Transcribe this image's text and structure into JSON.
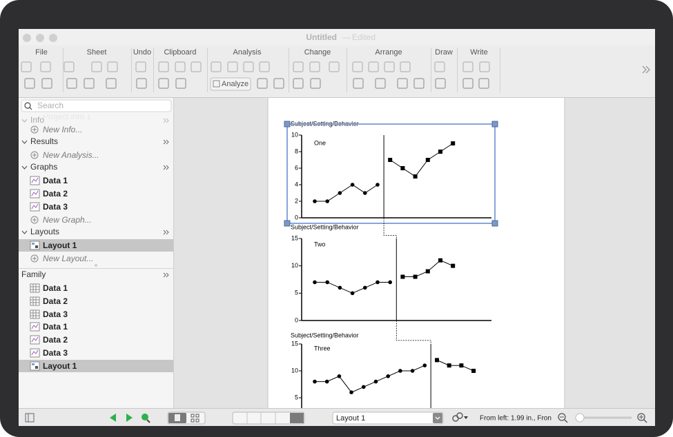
{
  "window": {
    "title": "Untitled",
    "status": "Edited"
  },
  "toolbar": {
    "groups": [
      "File",
      "Sheet",
      "Undo",
      "Clipboard",
      "Analysis",
      "Change",
      "Arrange",
      "Draw",
      "Write"
    ],
    "analyze_button": "Analyze"
  },
  "sidebar": {
    "search_placeholder": "Search",
    "sections": [
      {
        "title": "Info",
        "items": [
          {
            "label": "Project info 1",
            "icon": "hidden"
          },
          {
            "label": "New Info...",
            "icon": "new"
          }
        ]
      },
      {
        "title": "Results",
        "items": [
          {
            "label": "New Analysis...",
            "icon": "new"
          }
        ]
      },
      {
        "title": "Graphs",
        "items": [
          {
            "label": "Data 1",
            "icon": "graph"
          },
          {
            "label": "Data 2",
            "icon": "graph"
          },
          {
            "label": "Data 3",
            "icon": "graph"
          },
          {
            "label": "New Graph...",
            "icon": "new"
          }
        ]
      },
      {
        "title": "Layouts",
        "items": [
          {
            "label": "Layout 1",
            "icon": "layout",
            "selected": true
          },
          {
            "label": "New Layout...",
            "icon": "new"
          }
        ]
      },
      {
        "title": "Family",
        "items": [
          {
            "label": "Data 1",
            "icon": "table"
          },
          {
            "label": "Data 2",
            "icon": "table"
          },
          {
            "label": "Data 3",
            "icon": "table"
          },
          {
            "label": "Data 1",
            "icon": "graph"
          },
          {
            "label": "Data 2",
            "icon": "graph"
          },
          {
            "label": "Data 3",
            "icon": "graph"
          },
          {
            "label": "Layout 1",
            "icon": "layout",
            "selected": true
          }
        ]
      }
    ]
  },
  "statusbar": {
    "layout_select": "Layout 1",
    "position": "From left: 1.99 in., Fron"
  },
  "chart_data": [
    {
      "type": "line",
      "title": "Subject/Setting/Behavior",
      "label": "One",
      "ylim": [
        0,
        10
      ],
      "yticks": [
        0,
        2,
        4,
        6,
        8,
        10
      ],
      "selected": true,
      "series": [
        {
          "color": "#000000",
          "marker": "circle",
          "values": [
            2,
            2,
            3,
            4,
            3,
            4
          ]
        },
        {
          "color": "#000000",
          "marker": "square",
          "values": [
            7,
            6,
            5,
            7,
            8,
            9
          ]
        }
      ]
    },
    {
      "type": "line",
      "title": "Subject/Setting/Behavior",
      "label": "Two",
      "ylim": [
        0,
        15
      ],
      "yticks": [
        0,
        5,
        10,
        15
      ],
      "series": [
        {
          "color": "#000000",
          "marker": "circle",
          "values": [
            7,
            7,
            6,
            5,
            6,
            7,
            7
          ]
        },
        {
          "color": "#000000",
          "marker": "square",
          "values": [
            8,
            8,
            9,
            11,
            10
          ]
        }
      ]
    },
    {
      "type": "line",
      "title": "Subject/Setting/Behavior",
      "label": "Three",
      "ylim": [
        0,
        15
      ],
      "yticks": [
        5,
        10,
        15
      ],
      "series": [
        {
          "color": "#000000",
          "marker": "circle",
          "values": [
            8,
            8,
            9,
            6,
            7,
            8,
            9,
            10,
            10,
            11
          ]
        },
        {
          "color": "#000000",
          "marker": "square",
          "values": [
            12,
            11,
            11,
            10
          ]
        }
      ]
    }
  ]
}
